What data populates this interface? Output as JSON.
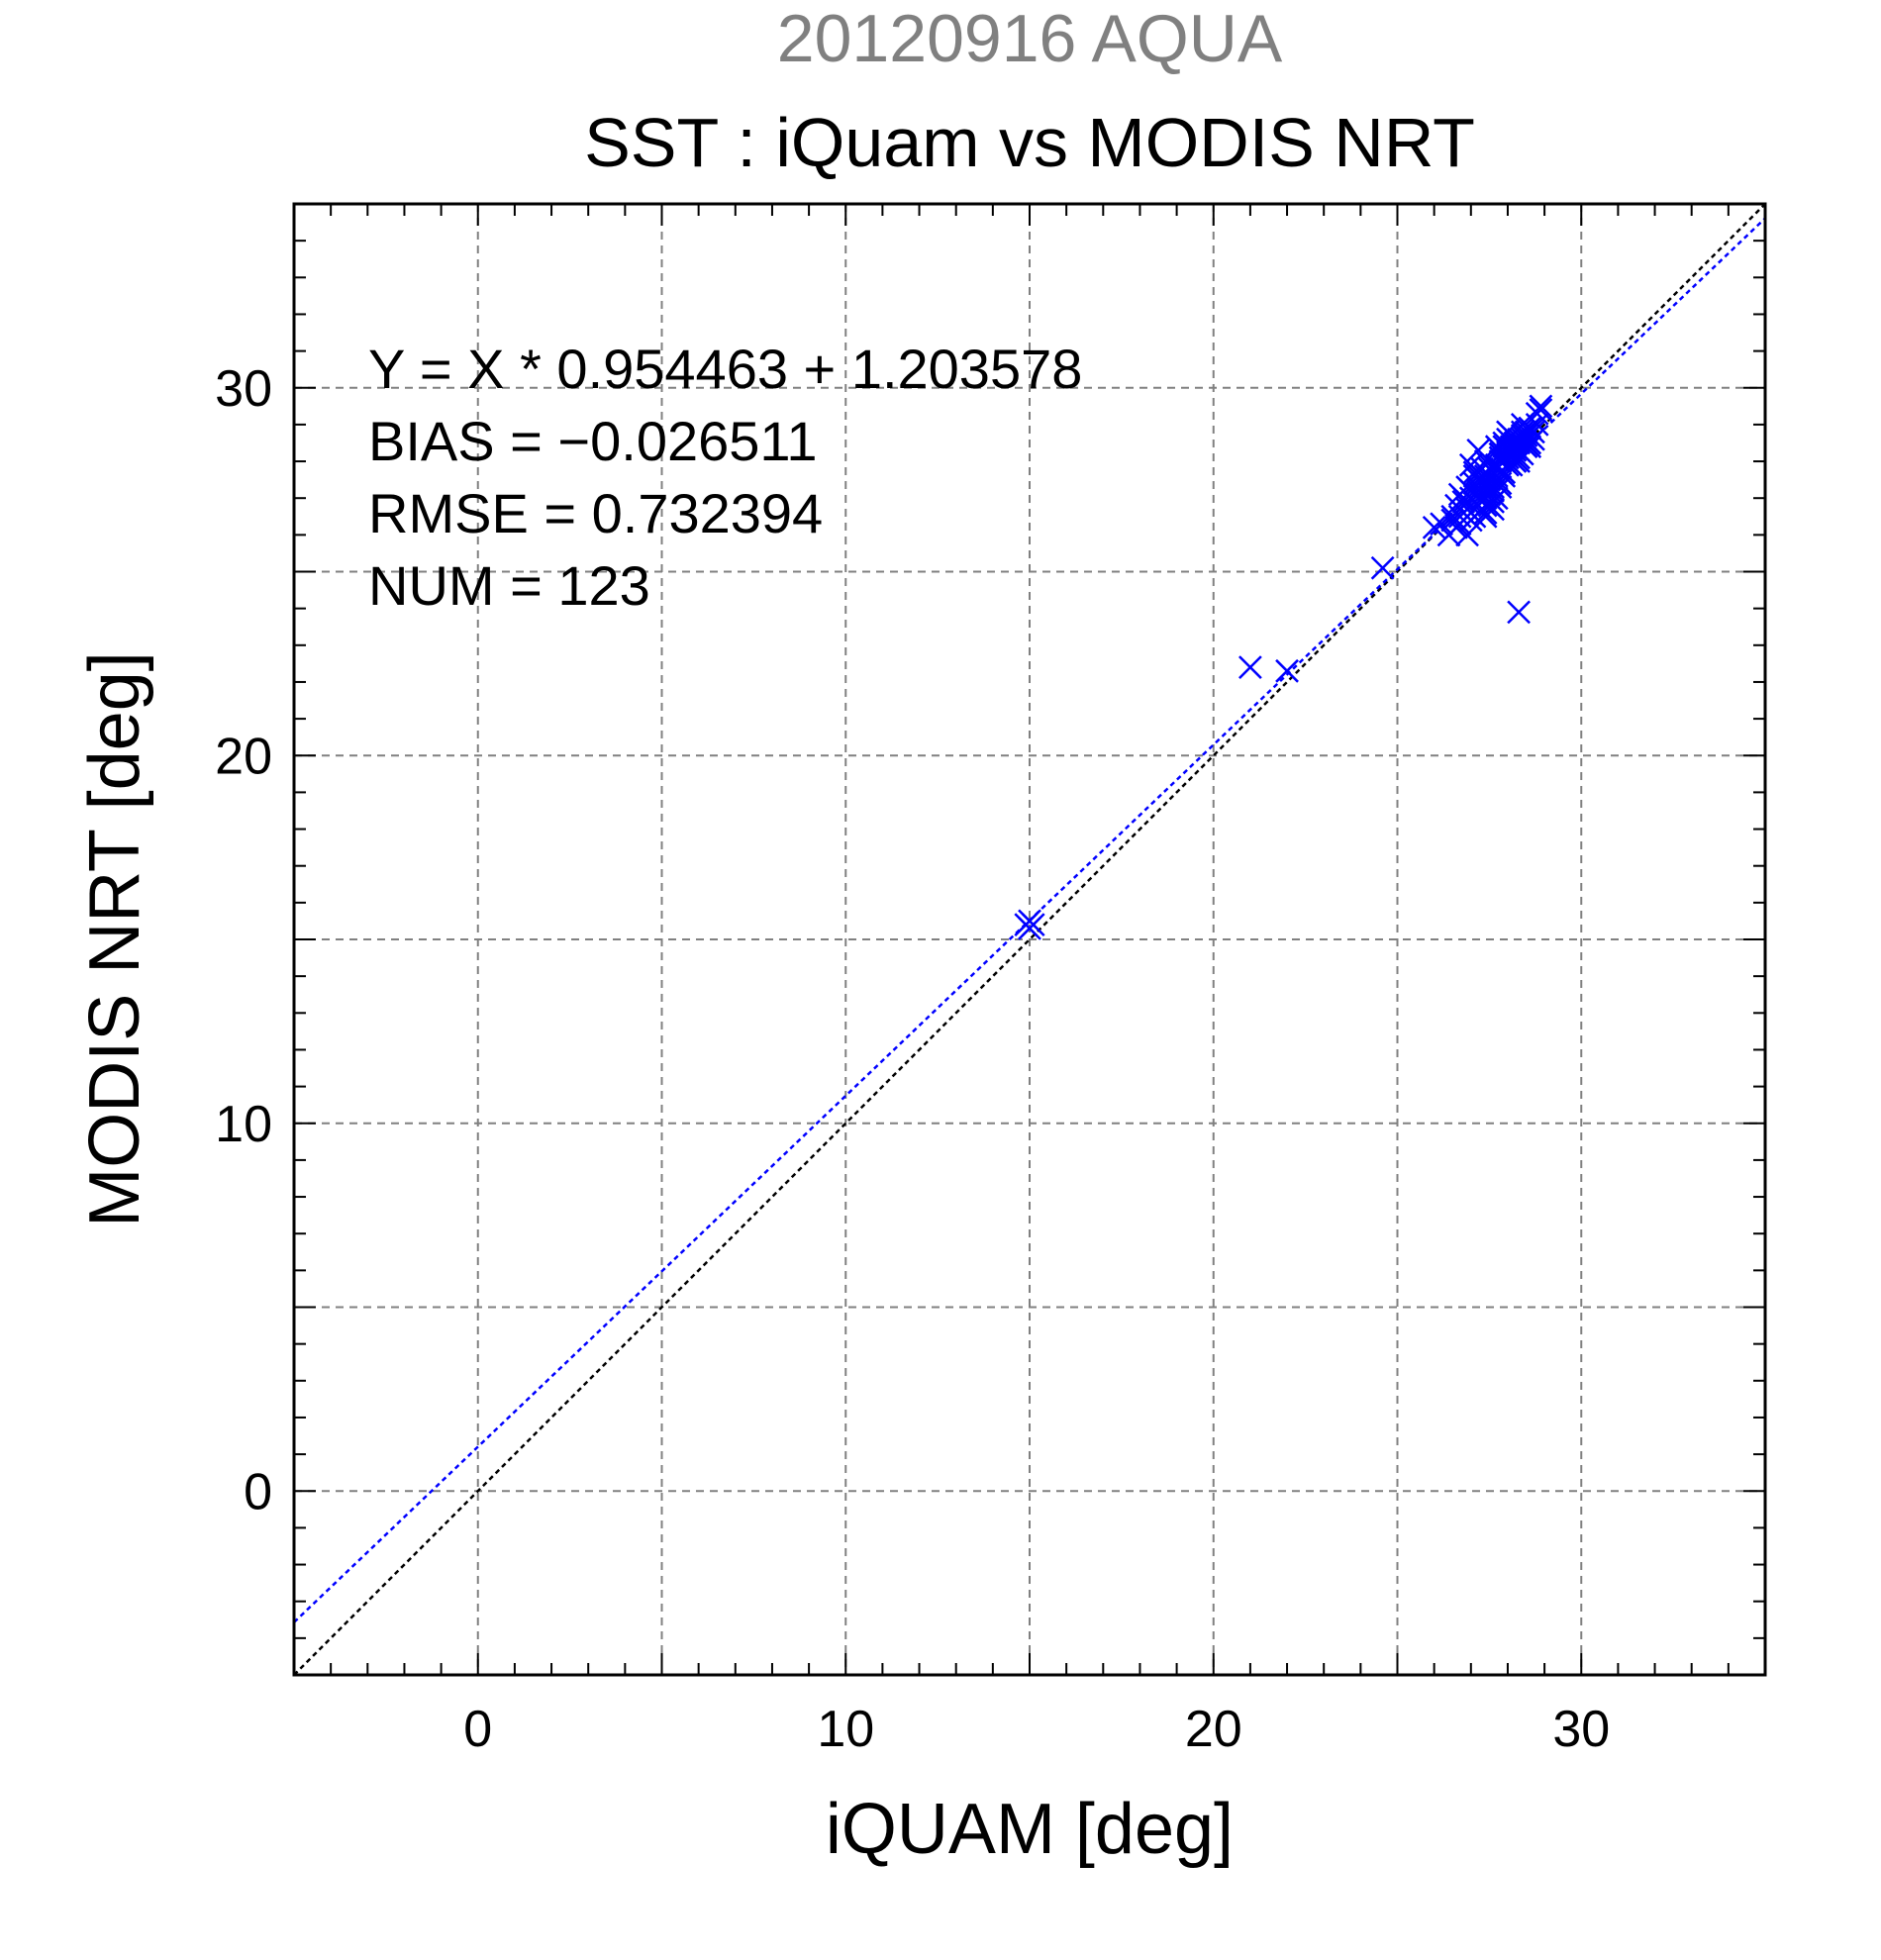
{
  "chart_data": {
    "type": "scatter",
    "supertitle": "20120916 AQUA",
    "title": "SST : iQuam vs MODIS NRT",
    "xlabel": "iQUAM [deg]",
    "ylabel": "MODIS NRT [deg]",
    "xlim": [
      -5,
      35
    ],
    "ylim": [
      -5,
      35
    ],
    "xticks": [
      0,
      10,
      20,
      30
    ],
    "yticks": [
      0,
      10,
      20,
      30
    ],
    "xtick_labels": [
      "0",
      "10",
      "20",
      "30"
    ],
    "ytick_labels": [
      "0",
      "10",
      "20",
      "30"
    ],
    "grid": true,
    "annotations": [
      "Y = X * 0.954463 + 1.203578",
      "BIAS = −0.026511",
      "RMSE = 0.732394",
      "NUM = 123"
    ],
    "fit_line": {
      "slope": 0.954463,
      "intercept": 1.203578,
      "color": "#0000ff"
    },
    "identity_line": {
      "slope": 1,
      "intercept": 0,
      "color": "#000000"
    },
    "marker_color": "#0000ff",
    "series": [
      {
        "x": [
          14.9,
          15.0,
          15.1,
          15.0,
          21.0,
          22.0,
          24.6,
          26.0,
          26.2,
          26.4,
          26.5,
          26.6,
          26.7,
          26.8,
          26.9,
          27.0,
          27.0,
          27.1,
          27.1,
          27.2,
          27.2,
          27.3,
          27.3,
          27.4,
          27.4,
          27.5,
          27.5,
          27.6,
          27.6,
          27.7,
          27.7,
          27.8,
          27.8,
          27.9,
          27.9,
          28.0,
          28.0,
          28.1,
          28.1,
          28.2,
          28.2,
          28.3,
          28.3,
          28.4,
          28.4,
          28.5,
          28.5,
          28.6,
          28.6,
          28.7,
          28.8,
          28.9,
          27.0,
          27.2,
          27.4,
          27.1,
          26.9,
          27.3,
          27.5,
          27.6,
          27.8,
          28.0,
          28.2,
          28.3,
          28.4,
          28.5,
          28.6,
          27.7,
          27.9,
          28.1,
          27.2,
          27.4,
          27.0,
          26.8,
          26.6,
          27.1,
          27.3,
          27.5,
          27.7,
          27.9,
          28.1,
          28.3,
          28.5,
          27.6,
          27.8,
          28.0,
          28.2,
          28.4,
          27.3,
          27.1,
          26.9,
          27.5,
          27.7,
          27.9,
          28.0,
          28.2,
          28.4,
          28.6,
          28.8,
          27.6,
          27.4,
          27.2,
          27.0,
          26.8,
          26.7,
          26.5,
          26.9,
          27.3,
          27.5,
          27.8,
          28.1,
          28.3,
          28.5,
          28.7,
          28.9,
          27.4,
          27.6,
          27.8,
          28.0,
          28.2,
          28.4,
          26.7,
          28.3
        ],
        "y": [
          15.4,
          15.3,
          15.4,
          15.5,
          22.4,
          22.3,
          25.1,
          26.2,
          26.3,
          26.0,
          26.5,
          26.8,
          26.3,
          27.0,
          27.3,
          26.6,
          27.9,
          26.9,
          27.4,
          27.1,
          28.3,
          26.7,
          27.6,
          27.0,
          28.0,
          27.2,
          27.8,
          26.9,
          27.5,
          27.6,
          28.4,
          27.3,
          28.1,
          27.7,
          28.5,
          27.9,
          28.6,
          28.2,
          28.7,
          28.0,
          28.4,
          28.3,
          28.5,
          28.6,
          28.8,
          28.4,
          28.7,
          28.5,
          28.9,
          28.6,
          29.0,
          29.5,
          27.2,
          26.8,
          26.5,
          27.6,
          26.9,
          27.8,
          27.1,
          26.7,
          27.4,
          28.1,
          28.3,
          28.0,
          28.2,
          28.5,
          28.4,
          27.9,
          28.0,
          28.3,
          27.5,
          26.6,
          26.4,
          26.6,
          26.2,
          26.5,
          27.0,
          27.3,
          27.0,
          27.6,
          27.9,
          28.6,
          28.8,
          27.2,
          28.2,
          28.3,
          28.5,
          28.7,
          26.9,
          27.7,
          26.7,
          27.5,
          27.8,
          28.4,
          28.2,
          28.6,
          29.0,
          28.9,
          29.3,
          27.3,
          26.8,
          27.2,
          27.0,
          26.9,
          27.1,
          26.4,
          26.0,
          27.4,
          26.8,
          28.0,
          28.4,
          28.1,
          28.6,
          28.8,
          29.4,
          27.6,
          27.9,
          28.2,
          28.8,
          28.5,
          28.7,
          26.5,
          23.9
        ]
      }
    ]
  }
}
